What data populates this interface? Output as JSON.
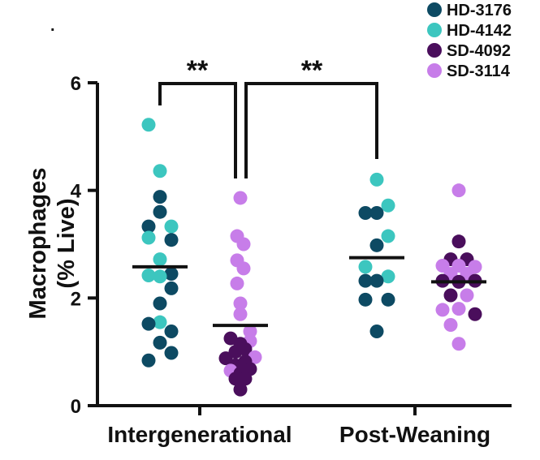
{
  "chart_data": {
    "type": "scatter",
    "ylabel_line1": "Macrophages",
    "ylabel_line2": "(% Live)",
    "ylim": [
      0,
      6
    ],
    "yticks": [
      0,
      2,
      4,
      6
    ],
    "ytick_labels": [
      "0",
      "2",
      "4",
      "6"
    ],
    "categories": [
      "Intergenerational",
      "Post-Weaning"
    ],
    "legend": [
      {
        "name": "HD-3176",
        "color": "#0d4a63"
      },
      {
        "name": "HD-4142",
        "color": "#3cc6bf"
      },
      {
        "name": "SD-4092",
        "color": "#4a0e5c"
      },
      {
        "name": "SD-3114",
        "color": "#c77de9"
      }
    ],
    "groups": [
      {
        "category": "Intergenerational",
        "subgroup": "HD",
        "mean": 2.58,
        "points": [
          {
            "dx": -0.7,
            "y": 5.22,
            "c": 1
          },
          {
            "dx": 0.0,
            "y": 4.36,
            "c": 1
          },
          {
            "dx": 0.0,
            "y": 3.88,
            "c": 0
          },
          {
            "dx": 0.0,
            "y": 3.6,
            "c": 0
          },
          {
            "dx": -0.7,
            "y": 3.33,
            "c": 0
          },
          {
            "dx": 0.7,
            "y": 3.33,
            "c": 1
          },
          {
            "dx": -0.7,
            "y": 3.12,
            "c": 1
          },
          {
            "dx": 0.7,
            "y": 3.08,
            "c": 0
          },
          {
            "dx": 0.0,
            "y": 2.72,
            "c": 1
          },
          {
            "dx": -0.7,
            "y": 2.42,
            "c": 1
          },
          {
            "dx": 0.7,
            "y": 2.45,
            "c": 0
          },
          {
            "dx": 0.0,
            "y": 2.4,
            "c": 1
          },
          {
            "dx": 0.7,
            "y": 2.18,
            "c": 0
          },
          {
            "dx": 0.0,
            "y": 1.9,
            "c": 0
          },
          {
            "dx": 0.0,
            "y": 1.55,
            "c": 1
          },
          {
            "dx": -0.7,
            "y": 1.52,
            "c": 0
          },
          {
            "dx": 0.7,
            "y": 1.38,
            "c": 0
          },
          {
            "dx": 0.0,
            "y": 1.17,
            "c": 0
          },
          {
            "dx": 0.7,
            "y": 0.98,
            "c": 0
          },
          {
            "dx": -0.7,
            "y": 0.84,
            "c": 0
          }
        ]
      },
      {
        "category": "Intergenerational",
        "subgroup": "SD",
        "mean": 1.49,
        "points": [
          {
            "dx": 0.0,
            "y": 3.86,
            "c": 3
          },
          {
            "dx": -0.2,
            "y": 3.15,
            "c": 3
          },
          {
            "dx": 0.2,
            "y": 3.0,
            "c": 3
          },
          {
            "dx": -0.2,
            "y": 2.7,
            "c": 3
          },
          {
            "dx": 0.2,
            "y": 2.55,
            "c": 3
          },
          {
            "dx": -0.2,
            "y": 2.27,
            "c": 3
          },
          {
            "dx": 0.0,
            "y": 1.9,
            "c": 3
          },
          {
            "dx": 0.0,
            "y": 1.7,
            "c": 3
          },
          {
            "dx": 0.6,
            "y": 1.38,
            "c": 3
          },
          {
            "dx": -0.6,
            "y": 1.25,
            "c": 2
          },
          {
            "dx": 0.6,
            "y": 1.2,
            "c": 3
          },
          {
            "dx": 0.0,
            "y": 1.15,
            "c": 2
          },
          {
            "dx": 0.3,
            "y": 1.05,
            "c": 2
          },
          {
            "dx": -0.3,
            "y": 1.0,
            "c": 2
          },
          {
            "dx": 0.9,
            "y": 0.9,
            "c": 3
          },
          {
            "dx": -0.9,
            "y": 0.88,
            "c": 2
          },
          {
            "dx": 0.3,
            "y": 0.82,
            "c": 2
          },
          {
            "dx": -0.3,
            "y": 0.75,
            "c": 2
          },
          {
            "dx": 0.6,
            "y": 0.68,
            "c": 2
          },
          {
            "dx": -0.6,
            "y": 0.65,
            "c": 3
          },
          {
            "dx": 0.0,
            "y": 0.6,
            "c": 2
          },
          {
            "dx": -0.3,
            "y": 0.5,
            "c": 2
          },
          {
            "dx": 0.3,
            "y": 0.5,
            "c": 2
          },
          {
            "dx": 0.0,
            "y": 0.3,
            "c": 2
          }
        ]
      },
      {
        "category": "Post-Weaning",
        "subgroup": "HD",
        "mean": 2.75,
        "points": [
          {
            "dx": 0.0,
            "y": 4.2,
            "c": 1
          },
          {
            "dx": 0.7,
            "y": 3.72,
            "c": 1
          },
          {
            "dx": -0.7,
            "y": 3.58,
            "c": 0
          },
          {
            "dx": 0.0,
            "y": 3.58,
            "c": 0
          },
          {
            "dx": 0.7,
            "y": 3.15,
            "c": 1
          },
          {
            "dx": 0.0,
            "y": 2.98,
            "c": 0
          },
          {
            "dx": -0.7,
            "y": 2.58,
            "c": 1
          },
          {
            "dx": 0.7,
            "y": 2.4,
            "c": 1
          },
          {
            "dx": -0.7,
            "y": 2.32,
            "c": 0
          },
          {
            "dx": 0.0,
            "y": 2.32,
            "c": 0
          },
          {
            "dx": -0.7,
            "y": 1.97,
            "c": 0
          },
          {
            "dx": 0.7,
            "y": 1.97,
            "c": 0
          },
          {
            "dx": 0.0,
            "y": 1.38,
            "c": 0
          }
        ]
      },
      {
        "category": "Post-Weaning",
        "subgroup": "SD",
        "mean": 2.3,
        "points": [
          {
            "dx": 0.0,
            "y": 4.0,
            "c": 3
          },
          {
            "dx": 0.0,
            "y": 3.05,
            "c": 2
          },
          {
            "dx": -0.5,
            "y": 2.72,
            "c": 2
          },
          {
            "dx": 0.5,
            "y": 2.72,
            "c": 2
          },
          {
            "dx": -1.0,
            "y": 2.6,
            "c": 3
          },
          {
            "dx": 0.0,
            "y": 2.6,
            "c": 3
          },
          {
            "dx": 1.0,
            "y": 2.58,
            "c": 3
          },
          {
            "dx": -0.5,
            "y": 2.45,
            "c": 3
          },
          {
            "dx": 0.5,
            "y": 2.45,
            "c": 3
          },
          {
            "dx": -1.0,
            "y": 2.32,
            "c": 2
          },
          {
            "dx": 0.0,
            "y": 2.3,
            "c": 2
          },
          {
            "dx": 1.0,
            "y": 2.32,
            "c": 2
          },
          {
            "dx": -0.5,
            "y": 2.05,
            "c": 2
          },
          {
            "dx": 0.5,
            "y": 2.05,
            "c": 3
          },
          {
            "dx": 0.0,
            "y": 1.8,
            "c": 3
          },
          {
            "dx": -1.0,
            "y": 1.78,
            "c": 3
          },
          {
            "dx": 1.0,
            "y": 1.7,
            "c": 2
          },
          {
            "dx": -0.5,
            "y": 1.5,
            "c": 3
          },
          {
            "dx": 0.0,
            "y": 1.15,
            "c": 3
          }
        ]
      }
    ],
    "significance": [
      {
        "from_group": 0,
        "to_group": 1,
        "label": "**"
      },
      {
        "from_group": 1,
        "to_group": 2,
        "label": "**"
      }
    ]
  }
}
